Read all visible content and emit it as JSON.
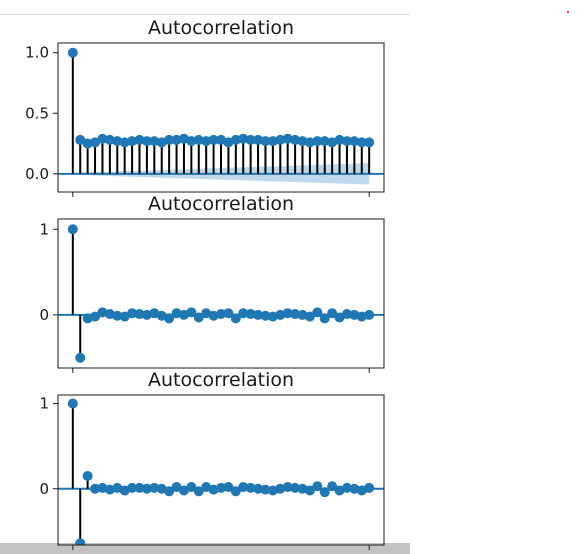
{
  "chart_data": [
    {
      "type": "stem",
      "title": "Autocorrelation",
      "ylim": [
        -0.15,
        1.08
      ],
      "yticks": [
        {
          "value": 1.0,
          "label": "1.0"
        },
        {
          "value": 0.5,
          "label": "0.5"
        },
        {
          "value": 0.0,
          "label": "0.0"
        }
      ],
      "x": [
        0,
        1,
        2,
        3,
        4,
        5,
        6,
        7,
        8,
        9,
        10,
        11,
        12,
        13,
        14,
        15,
        16,
        17,
        18,
        19,
        20,
        21,
        22,
        23,
        24,
        25,
        26,
        27,
        28,
        29,
        30,
        31,
        32,
        33,
        34,
        35,
        36,
        37,
        38,
        39,
        40
      ],
      "values": [
        1.0,
        0.28,
        0.25,
        0.26,
        0.29,
        0.28,
        0.27,
        0.26,
        0.27,
        0.28,
        0.27,
        0.27,
        0.26,
        0.28,
        0.28,
        0.29,
        0.27,
        0.28,
        0.27,
        0.28,
        0.28,
        0.26,
        0.28,
        0.29,
        0.28,
        0.28,
        0.27,
        0.27,
        0.28,
        0.29,
        0.28,
        0.27,
        0.26,
        0.27,
        0.27,
        0.26,
        0.28,
        0.27,
        0.27,
        0.26,
        0.26
      ],
      "confidence_band_upper": [
        0.0,
        0.01,
        0.012,
        0.014,
        0.016,
        0.018,
        0.02,
        0.022,
        0.024,
        0.026,
        0.028,
        0.03,
        0.032,
        0.034,
        0.036,
        0.038,
        0.04,
        0.042,
        0.044,
        0.046,
        0.048,
        0.05,
        0.052,
        0.054,
        0.056,
        0.058,
        0.06,
        0.062,
        0.064,
        0.066,
        0.068,
        0.07,
        0.072,
        0.074,
        0.076,
        0.078,
        0.08,
        0.082,
        0.084,
        0.086,
        0.088
      ]
    },
    {
      "type": "stem",
      "title": "Autocorrelation",
      "ylim": [
        -0.62,
        1.12
      ],
      "yticks": [
        {
          "value": 1,
          "label": "1"
        },
        {
          "value": 0,
          "label": "0"
        }
      ],
      "x": [
        0,
        1,
        2,
        3,
        4,
        5,
        6,
        7,
        8,
        9,
        10,
        11,
        12,
        13,
        14,
        15,
        16,
        17,
        18,
        19,
        20,
        21,
        22,
        23,
        24,
        25,
        26,
        27,
        28,
        29,
        30,
        31,
        32,
        33,
        34,
        35,
        36,
        37,
        38,
        39,
        40
      ],
      "values": [
        1.0,
        -0.5,
        -0.04,
        -0.02,
        0.03,
        0.01,
        -0.01,
        -0.02,
        0.02,
        0.01,
        0.0,
        0.02,
        -0.01,
        -0.04,
        0.02,
        0.0,
        0.03,
        -0.03,
        0.02,
        -0.01,
        0.01,
        0.02,
        -0.04,
        0.02,
        0.01,
        0.0,
        -0.01,
        -0.02,
        0.0,
        0.02,
        0.01,
        0.0,
        -0.02,
        0.03,
        -0.04,
        0.02,
        -0.03,
        0.01,
        0.0,
        -0.02,
        0.0
      ],
      "confidence_band_upper": [
        0.0,
        0.01,
        0.015,
        0.015,
        0.015,
        0.015,
        0.015,
        0.015,
        0.015,
        0.015,
        0.015,
        0.015,
        0.015,
        0.015,
        0.015,
        0.015,
        0.015,
        0.015,
        0.015,
        0.015,
        0.015,
        0.015,
        0.015,
        0.015,
        0.015,
        0.015,
        0.015,
        0.015,
        0.015,
        0.015,
        0.015,
        0.015,
        0.015,
        0.015,
        0.015,
        0.015,
        0.015,
        0.015,
        0.015,
        0.015,
        0.015
      ]
    },
    {
      "type": "stem",
      "title": "Autocorrelation",
      "ylim": [
        -0.66,
        1.1
      ],
      "yticks": [
        {
          "value": 1,
          "label": "1"
        },
        {
          "value": 0,
          "label": "0"
        }
      ],
      "x": [
        0,
        1,
        2,
        3,
        4,
        5,
        6,
        7,
        8,
        9,
        10,
        11,
        12,
        13,
        14,
        15,
        16,
        17,
        18,
        19,
        20,
        21,
        22,
        23,
        24,
        25,
        26,
        27,
        28,
        29,
        30,
        31,
        32,
        33,
        34,
        35,
        36,
        37,
        38,
        39,
        40
      ],
      "values": [
        1.0,
        -0.64,
        0.15,
        0.0,
        0.01,
        -0.01,
        0.01,
        -0.02,
        0.01,
        0.01,
        0.0,
        0.01,
        0.0,
        -0.03,
        0.02,
        -0.02,
        0.02,
        -0.03,
        0.02,
        -0.01,
        0.01,
        0.02,
        -0.03,
        0.02,
        0.01,
        0.0,
        -0.01,
        -0.02,
        0.0,
        0.02,
        0.01,
        0.0,
        -0.02,
        0.03,
        -0.04,
        0.03,
        -0.02,
        0.01,
        0.0,
        -0.02,
        0.01
      ],
      "confidence_band_upper": [
        0.0,
        0.01,
        0.015,
        0.015,
        0.015,
        0.015,
        0.015,
        0.015,
        0.015,
        0.015,
        0.015,
        0.015,
        0.015,
        0.015,
        0.015,
        0.015,
        0.015,
        0.015,
        0.015,
        0.015,
        0.015,
        0.015,
        0.015,
        0.015,
        0.015,
        0.015,
        0.015,
        0.015,
        0.015,
        0.015,
        0.015,
        0.015,
        0.015,
        0.015,
        0.015,
        0.015,
        0.015,
        0.015,
        0.015,
        0.015,
        0.015
      ]
    }
  ],
  "colors": {
    "marker": "#1f77b4",
    "stem": "#000000",
    "zero_line": "#1f77b4",
    "band": "#a9cbe6",
    "axes": "#1a1a1a"
  }
}
